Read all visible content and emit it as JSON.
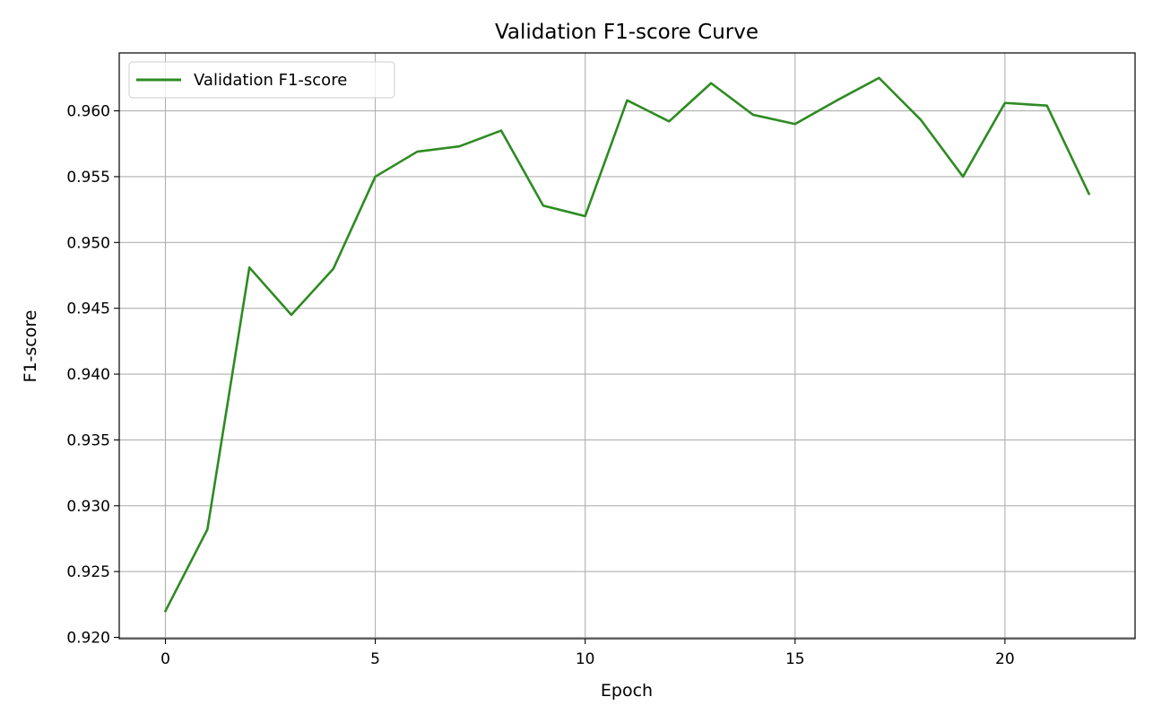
{
  "chart_data": {
    "type": "line",
    "title": "Validation F1-score Curve",
    "xlabel": "Epoch",
    "ylabel": "F1-score",
    "xlim": [
      -1.1,
      23.1
    ],
    "ylim": [
      0.9199,
      0.9644
    ],
    "x_ticks": [
      0,
      5,
      10,
      15,
      20
    ],
    "y_ticks": [
      0.92,
      0.925,
      0.93,
      0.935,
      0.94,
      0.945,
      0.95,
      0.955,
      0.96
    ],
    "x_tick_labels": [
      "0",
      "5",
      "10",
      "15",
      "20"
    ],
    "y_tick_labels": [
      "0.920",
      "0.925",
      "0.930",
      "0.935",
      "0.940",
      "0.945",
      "0.950",
      "0.955",
      "0.960"
    ],
    "grid": true,
    "legend_position": "top-left",
    "series": [
      {
        "name": "Validation F1-score",
        "color": "#2e8b22",
        "x": [
          0,
          1,
          2,
          3,
          4,
          5,
          6,
          7,
          8,
          9,
          10,
          11,
          12,
          13,
          14,
          15,
          16,
          17,
          18,
          19,
          20,
          21,
          22
        ],
        "values": [
          0.922,
          0.9282,
          0.9481,
          0.9445,
          0.948,
          0.955,
          0.9569,
          0.9573,
          0.9585,
          0.9528,
          0.952,
          0.9608,
          0.9592,
          0.9621,
          0.9597,
          0.959,
          0.9608,
          0.9625,
          0.9593,
          0.955,
          0.9606,
          0.9604,
          0.9537
        ]
      }
    ]
  }
}
